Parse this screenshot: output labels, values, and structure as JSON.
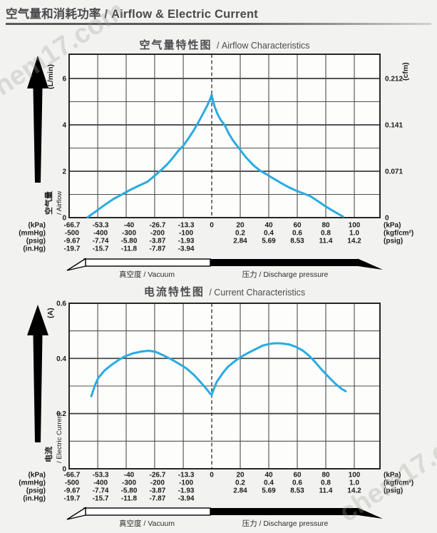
{
  "header": {
    "title": "空气量和消耗功率 / Airflow & Electric Current"
  },
  "watermark": {
    "text": "chem17.com"
  },
  "x_axis": {
    "ticks_kpa": [
      -66.7,
      -53.3,
      -40,
      -26.7,
      -13.3,
      0,
      20,
      40,
      60,
      80,
      100
    ],
    "rows": [
      {
        "left_unit": "(kPa)",
        "right_unit": "(kPa)",
        "values": [
          "-66.7",
          "-53.3",
          "-40",
          "-26.7",
          "-13.3",
          "0",
          "20",
          "40",
          "60",
          "80",
          "100"
        ]
      },
      {
        "left_unit": "(mmHg)",
        "right_unit": "(kgf/cm²)",
        "values": [
          "-500",
          "-400",
          "-300",
          "-200",
          "-100",
          "",
          "0.2",
          "0.4",
          "0.6",
          "0.8",
          "1.0"
        ]
      },
      {
        "left_unit": "(psig)",
        "right_unit": "(psig)",
        "values": [
          "-9.67",
          "-7.74",
          "-5.80",
          "-3.87",
          "-1.93",
          "",
          "2.84",
          "5.69",
          "8.53",
          "11.4",
          "14.2"
        ]
      },
      {
        "left_unit": "(in.Hg)",
        "right_unit": "",
        "values": [
          "-19.7",
          "-15.7",
          "-11.8",
          "-7.87",
          "-3.94",
          "",
          "",
          "",
          "",
          "",
          ""
        ]
      }
    ],
    "vacuum_label": "真空度 / Vacuum",
    "pressure_label": "压力 / Discharge pressure",
    "zero_line_dashed": true
  },
  "chart_data": [
    {
      "type": "line",
      "name": "airflow",
      "title": "空气量特性图",
      "title_en": " / Airflow Characteristics",
      "ylabel_cn": "空气量",
      "ylabel_en": "/ Airflow",
      "y_unit_left": "(L/min)",
      "y_unit_right": "(cfm)",
      "ylim": [
        0,
        7
      ],
      "xlim_kpa": [
        -66.7,
        118
      ],
      "y_ticks_left": [
        {
          "v": 0,
          "label": "0"
        },
        {
          "v": 2,
          "label": "2"
        },
        {
          "v": 4,
          "label": "4"
        },
        {
          "v": 6,
          "label": "6"
        }
      ],
      "y_ticks_right": [
        {
          "v": 0,
          "label": "0"
        },
        {
          "v": 2,
          "label": "0.071"
        },
        {
          "v": 4,
          "label": "0.141"
        },
        {
          "v": 6,
          "label": "0.212"
        }
      ],
      "gridline_values": [
        1,
        2,
        3,
        4,
        5,
        6
      ],
      "major_values": [
        2,
        4,
        6
      ],
      "series": [
        {
          "name": "airflow-vs-pressure",
          "x_kpa": [
            -58,
            -54,
            -50,
            -46,
            -42,
            -38,
            -34,
            -30,
            -26.5,
            -24,
            -21,
            -18,
            -15.5,
            -13.3,
            -11,
            -8.5,
            -6,
            -4,
            -2,
            -0.8,
            0,
            1,
            2,
            3.5,
            5,
            7,
            9,
            12,
            15,
            19,
            24,
            29,
            34,
            39,
            44,
            49,
            54,
            59,
            64,
            69,
            74,
            79,
            84,
            89,
            92
          ],
          "y": [
            0.02,
            0.28,
            0.55,
            0.8,
            1.0,
            1.2,
            1.38,
            1.55,
            1.82,
            2.02,
            2.28,
            2.6,
            2.9,
            3.1,
            3.4,
            3.75,
            4.15,
            4.5,
            4.85,
            5.1,
            5.3,
            5.0,
            4.8,
            4.55,
            4.35,
            4.15,
            4.0,
            3.62,
            3.32,
            3.0,
            2.6,
            2.27,
            2.02,
            1.85,
            1.66,
            1.48,
            1.31,
            1.17,
            1.05,
            0.93,
            0.73,
            0.52,
            0.33,
            0.15,
            0.05
          ]
        }
      ],
      "line_color": "#29abe2"
    },
    {
      "type": "line",
      "name": "current",
      "title": "电流特性图",
      "title_en": " / Current Characteristics",
      "ylabel_cn": "电流",
      "ylabel_en": "/ Electric Current",
      "y_unit_left": "(A)",
      "y_unit_right": "",
      "ylim": [
        0,
        0.6
      ],
      "xlim_kpa": [
        -66.7,
        118
      ],
      "y_ticks_left": [
        {
          "v": 0,
          "label": "0"
        },
        {
          "v": 0.2,
          "label": "0.2"
        },
        {
          "v": 0.4,
          "label": "0.4"
        },
        {
          "v": 0.6,
          "label": "0.6"
        }
      ],
      "y_ticks_right": [],
      "gridline_values": [
        0.1,
        0.2,
        0.3,
        0.4,
        0.5
      ],
      "major_values": [
        0.2,
        0.4
      ],
      "series": [
        {
          "name": "current-vs-pressure",
          "x_kpa": [
            -56.3,
            -54.5,
            -53,
            -50,
            -47.3,
            -44,
            -40.7,
            -37,
            -33,
            -29.5,
            -26.3,
            -22.5,
            -18.3,
            -15,
            -11.7,
            -8.3,
            -5,
            -2.5,
            -0.7,
            0,
            1.5,
            3.5,
            5.5,
            8.5,
            11.5,
            15.5,
            19.5,
            25.5,
            30.5,
            35.5,
            40,
            44,
            48,
            54,
            59,
            64,
            68,
            72.5,
            77,
            82.5,
            87,
            91,
            94
          ],
          "y": [
            0.263,
            0.305,
            0.33,
            0.357,
            0.374,
            0.392,
            0.407,
            0.418,
            0.425,
            0.428,
            0.424,
            0.411,
            0.394,
            0.379,
            0.363,
            0.34,
            0.312,
            0.29,
            0.272,
            0.268,
            0.29,
            0.315,
            0.33,
            0.352,
            0.37,
            0.387,
            0.402,
            0.42,
            0.433,
            0.446,
            0.452,
            0.455,
            0.455,
            0.451,
            0.442,
            0.428,
            0.411,
            0.387,
            0.36,
            0.33,
            0.307,
            0.29,
            0.281
          ]
        }
      ],
      "line_color": "#29abe2"
    }
  ]
}
